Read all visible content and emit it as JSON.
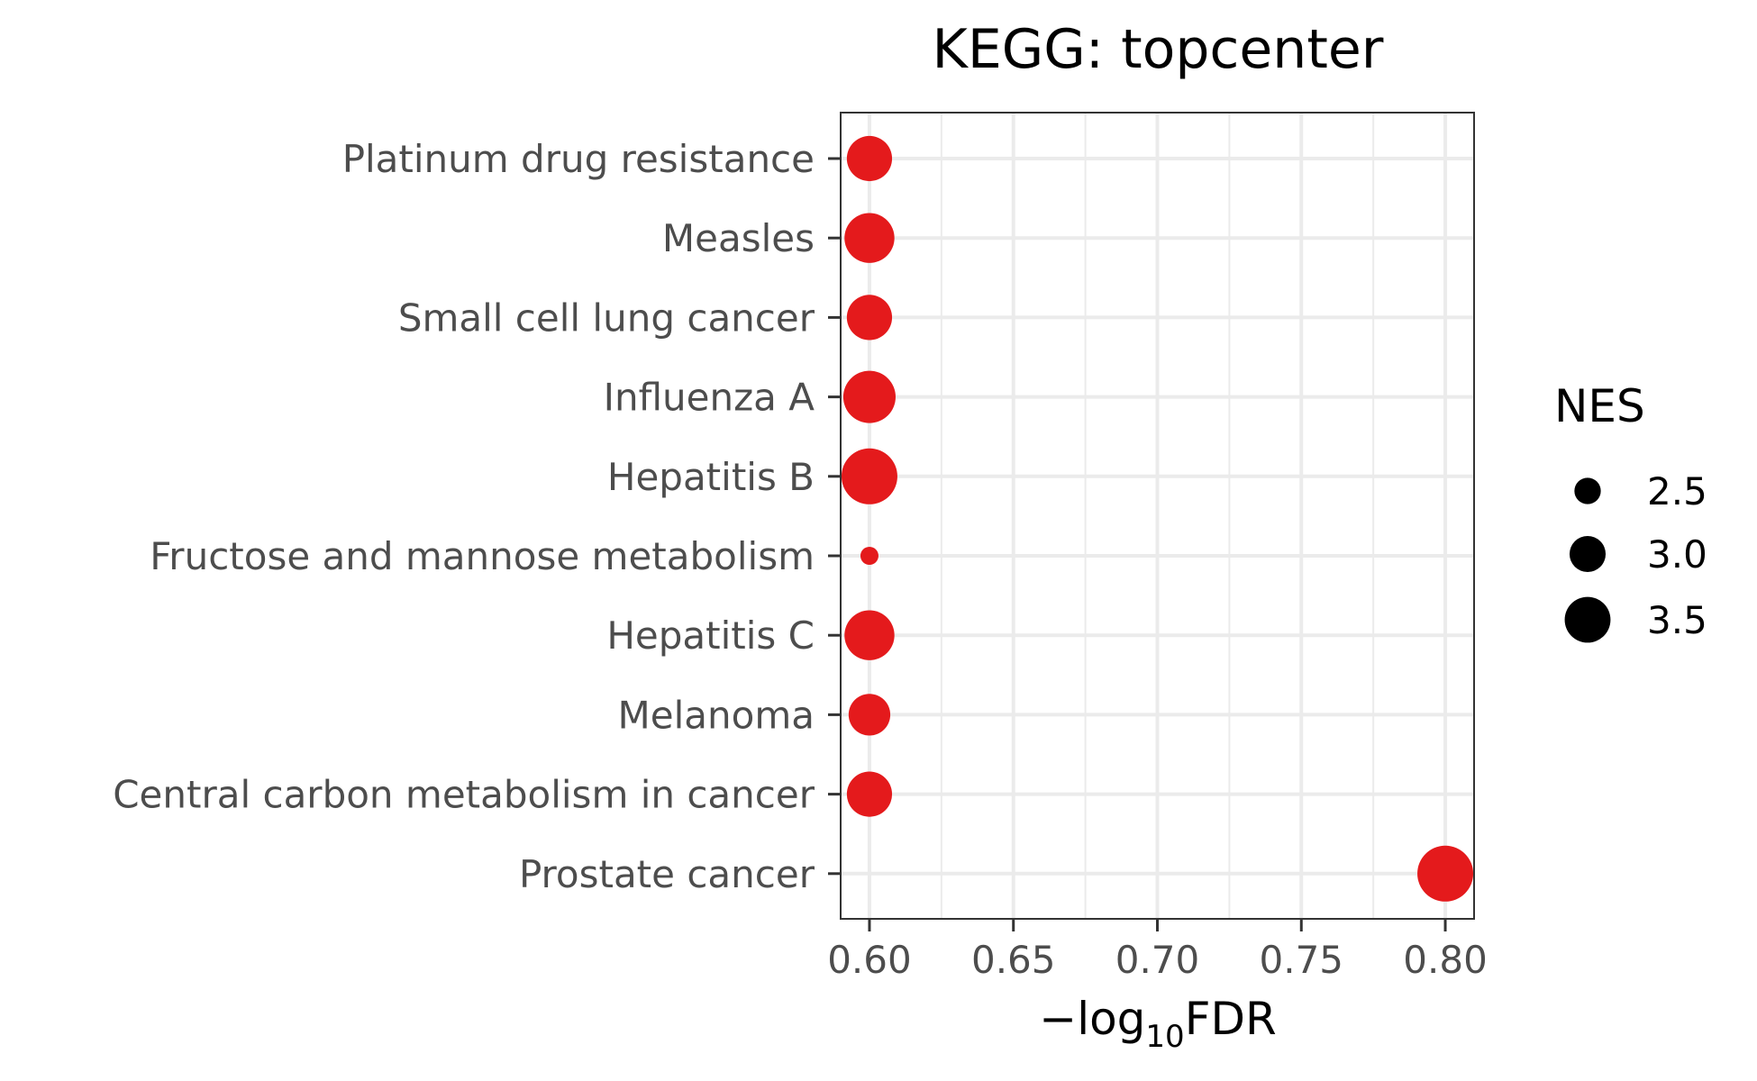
{
  "chart_data": {
    "type": "scatter",
    "title": "KEGG: topcenter",
    "xlabel_main": "−log",
    "xlabel_sub": "10",
    "xlabel_tail": "FDR",
    "ylabel": "",
    "xlim": [
      0.59,
      0.81
    ],
    "x_ticks": [
      0.6,
      0.65,
      0.7,
      0.75,
      0.8
    ],
    "x_tick_labels": [
      "0.60",
      "0.65",
      "0.70",
      "0.75",
      "0.80"
    ],
    "grid": true,
    "point_color": "#e41a1c",
    "categories": [
      "Platinum drug resistance",
      "Measles",
      "Small cell lung cancer",
      "Influenza A",
      "Hepatitis B",
      "Fructose and mannose metabolism",
      "Hepatitis C",
      "Melanoma",
      "Central carbon metabolism in cancer",
      "Prostate cancer"
    ],
    "x": [
      0.6,
      0.6,
      0.6,
      0.6,
      0.6,
      0.6,
      0.6,
      0.6,
      0.6,
      0.8
    ],
    "NES": [
      3.05,
      3.25,
      3.05,
      3.35,
      3.5,
      1.9,
      3.25,
      2.9,
      3.05,
      3.5
    ],
    "legend": {
      "title": "NES",
      "placement": "right",
      "entries": [
        {
          "label": "2.5",
          "value": 2.5
        },
        {
          "label": "3.0",
          "value": 3.0
        },
        {
          "label": "3.5",
          "value": 3.5
        }
      ]
    }
  }
}
